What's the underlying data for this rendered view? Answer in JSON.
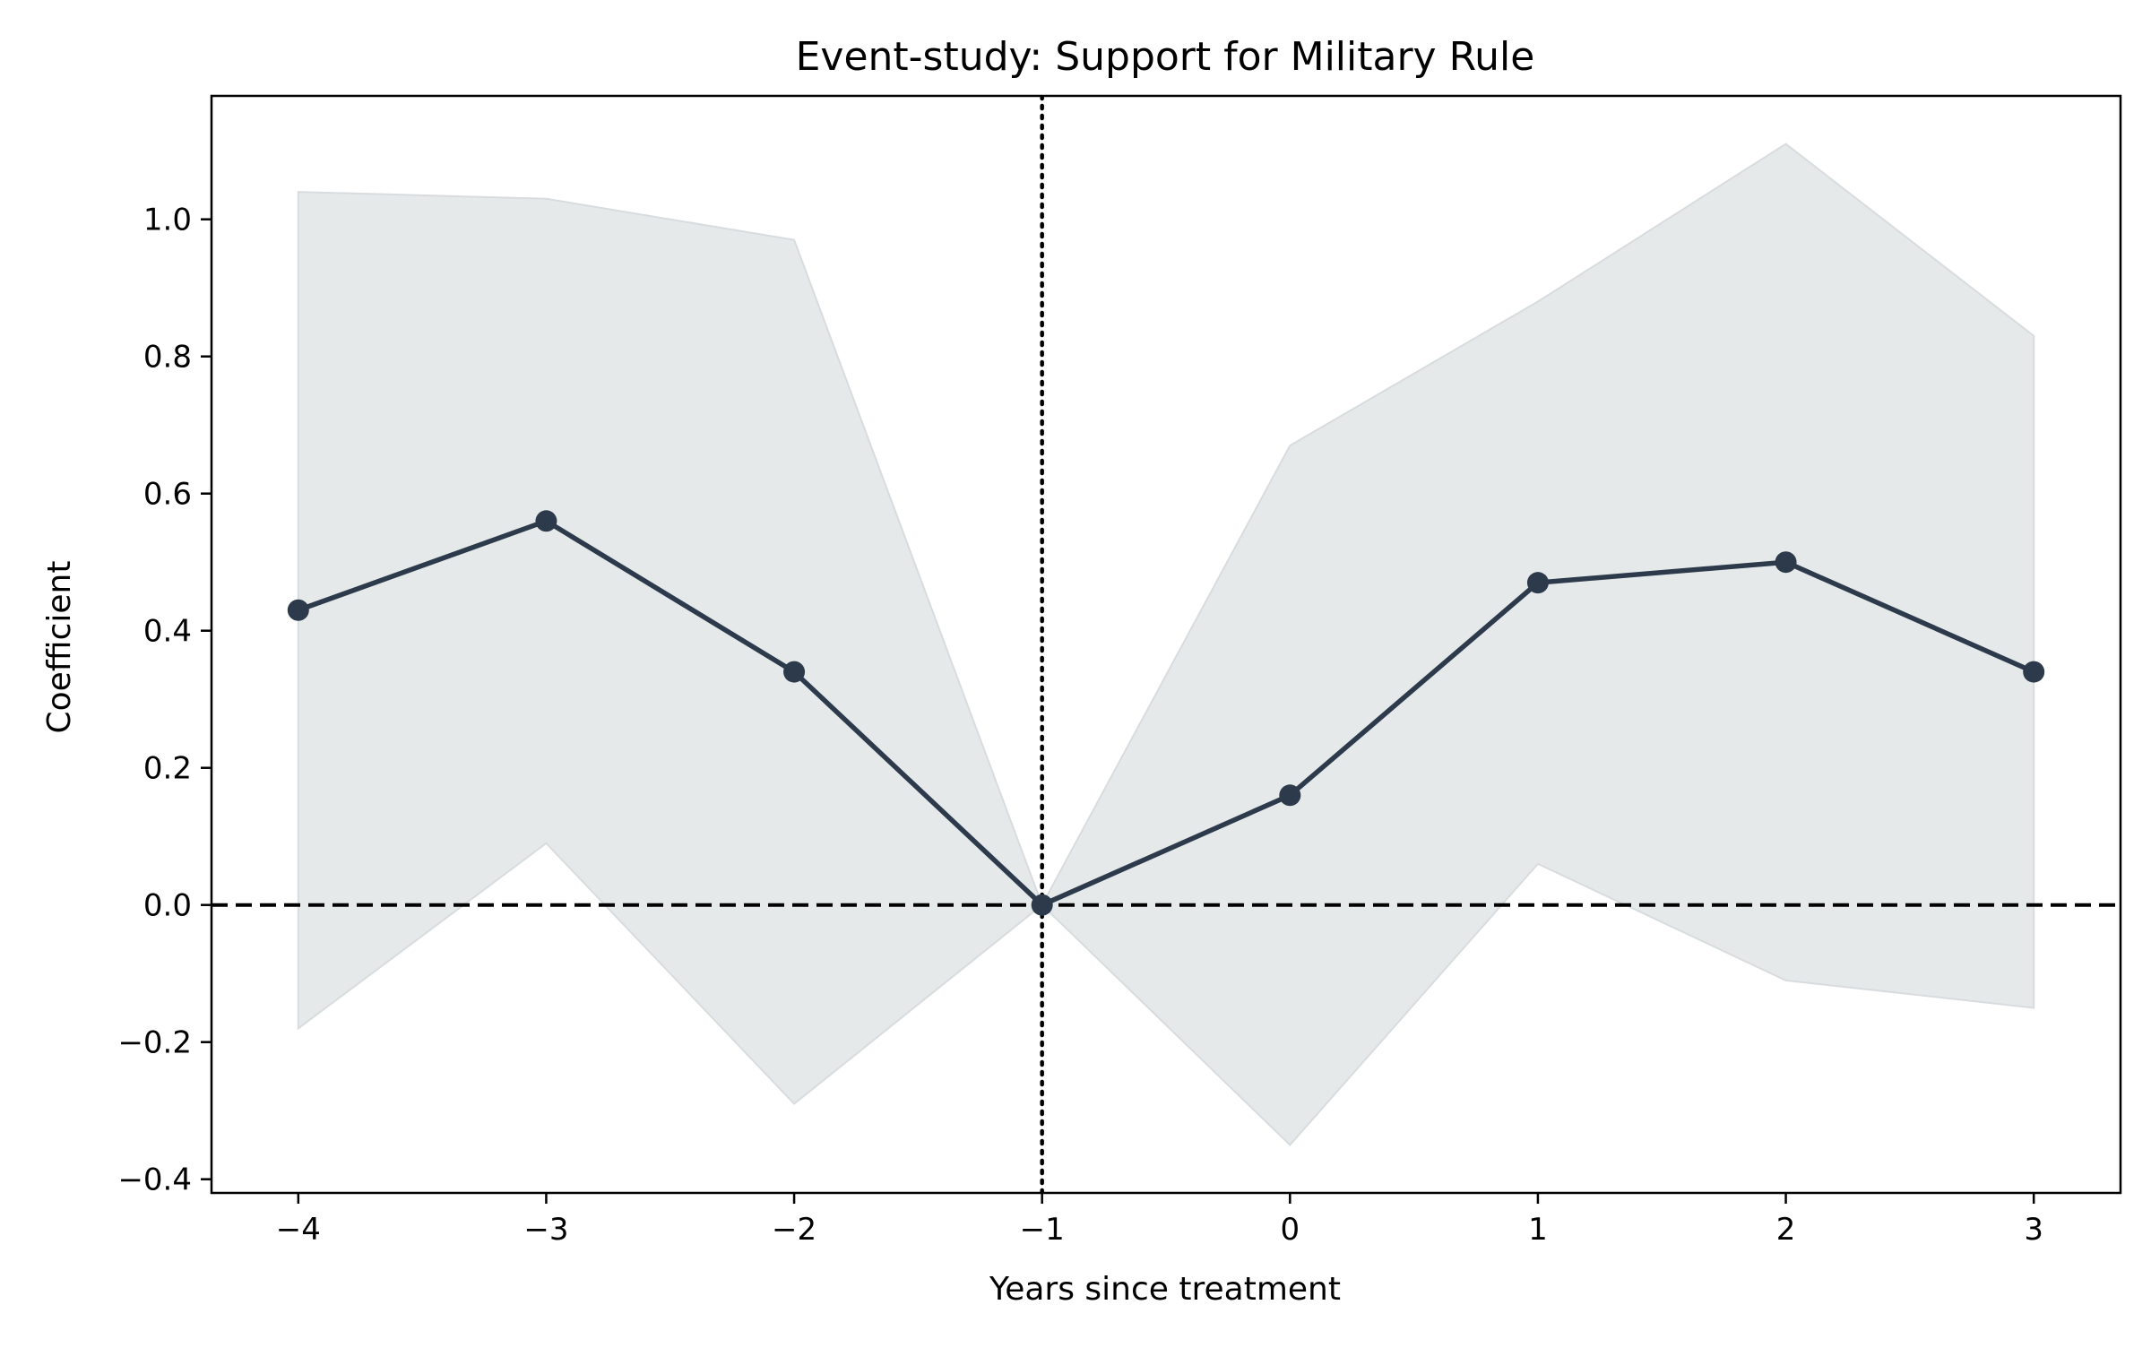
{
  "chart_data": {
    "type": "line",
    "title": "Event-study: Support for Military Rule",
    "xlabel": "Years since treatment",
    "ylabel": "Coefficient",
    "x": [
      -4,
      -3,
      -2,
      -1,
      0,
      1,
      2,
      3
    ],
    "series": [
      {
        "values": [
          0.43,
          0.56,
          0.34,
          0.0,
          0.16,
          0.47,
          0.5,
          0.34
        ],
        "ci_lower": [
          -0.18,
          0.09,
          -0.29,
          0.0,
          -0.35,
          0.06,
          -0.11,
          -0.15
        ],
        "ci_upper": [
          1.04,
          1.03,
          0.97,
          0.0,
          0.67,
          0.88,
          1.11,
          0.83
        ],
        "color": "#2c3a4b",
        "band_color": "#e6e9ea"
      }
    ],
    "xlim": [
      -4.35,
      3.35
    ],
    "ylim": [
      -0.42,
      1.18
    ],
    "xticks": [
      -4,
      -3,
      -2,
      -1,
      0,
      1,
      2,
      3
    ],
    "xtick_labels": [
      "−4",
      "−3",
      "−2",
      "−1",
      "0",
      "1",
      "2",
      "3"
    ],
    "yticks": [
      -0.4,
      -0.2,
      0.0,
      0.2,
      0.4,
      0.6,
      0.8,
      1.0
    ],
    "ytick_labels": [
      "−0.4",
      "−0.2",
      "0.0",
      "0.2",
      "0.4",
      "0.6",
      "0.8",
      "1.0"
    ],
    "reference_lines": [
      {
        "axis": "y",
        "value": 0,
        "style": "dashed",
        "color": "#000000"
      },
      {
        "axis": "x",
        "value": -1,
        "style": "dotted",
        "color": "#000000"
      }
    ],
    "grid": false,
    "legend": "none"
  }
}
